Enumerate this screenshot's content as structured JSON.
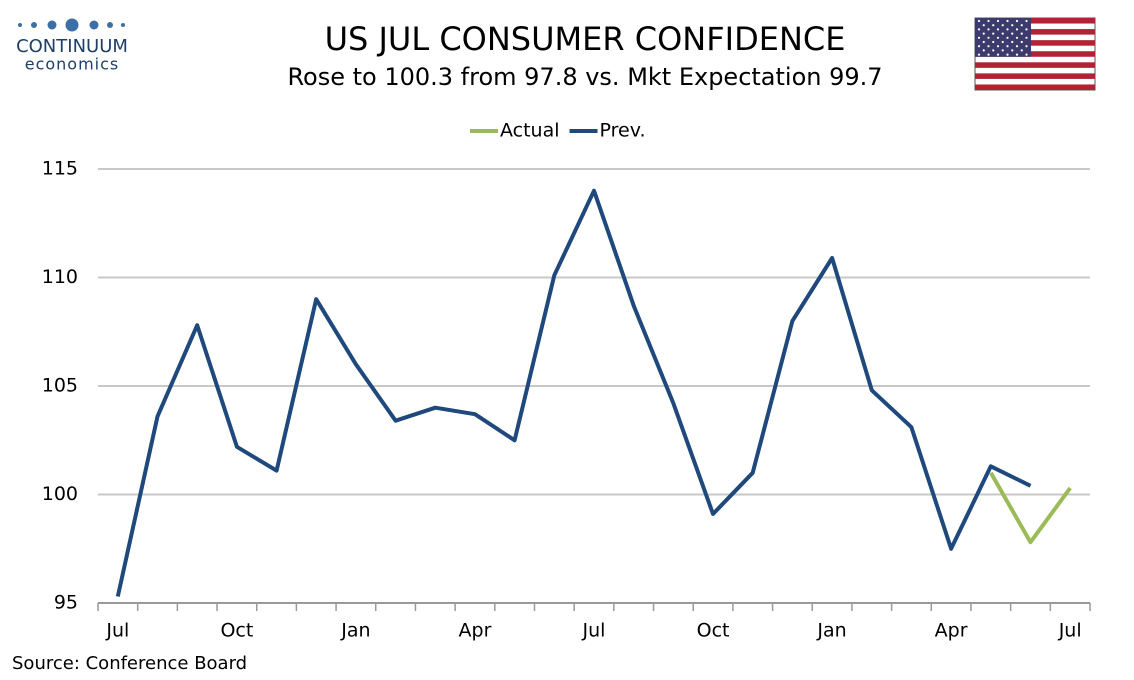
{
  "logo": {
    "name": "CONTINUUM",
    "tagline": "economics"
  },
  "chart_data": {
    "type": "line",
    "title": "US JUL CONSUMER CONFIDENCE",
    "subtitle": "Rose to 100.3 from 97.8 vs. Mkt Expectation 99.7",
    "source": "Source: Conference Board",
    "categories": [
      "Jul",
      null,
      null,
      "Oct",
      null,
      null,
      "Jan",
      null,
      null,
      "Apr",
      null,
      null,
      "Jul",
      null,
      null,
      "Oct",
      null,
      null,
      "Jan",
      null,
      null,
      "Apr",
      null,
      null,
      "Jul"
    ],
    "series": [
      {
        "name": "Actual",
        "color": "#9bbb59",
        "values": [
          null,
          null,
          null,
          null,
          null,
          null,
          null,
          null,
          null,
          null,
          null,
          null,
          null,
          null,
          null,
          null,
          null,
          null,
          null,
          null,
          null,
          null,
          101.0,
          97.8,
          100.3
        ]
      },
      {
        "name": "Prev.",
        "color": "#1f497d",
        "values": [
          95.3,
          103.6,
          107.8,
          102.2,
          101.1,
          109.0,
          106.0,
          103.4,
          104.0,
          103.7,
          102.5,
          110.1,
          114.0,
          108.7,
          104.2,
          99.1,
          101.0,
          108.0,
          110.9,
          104.8,
          103.1,
          97.5,
          101.3,
          100.4,
          null
        ]
      }
    ],
    "ylim": [
      95,
      115
    ],
    "yticks": [
      95,
      100,
      105,
      110,
      115
    ],
    "grid": true,
    "legend": "top"
  }
}
